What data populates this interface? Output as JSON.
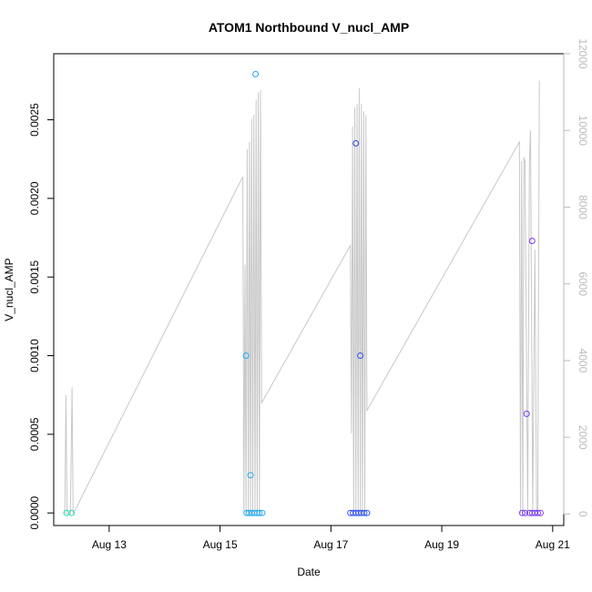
{
  "chart_data": {
    "type": "scatter",
    "title": "ATOM1 Northbound V_nucl_AMP",
    "xlabel": "Date",
    "ylabel": "V_nucl_AMP",
    "x_ticks": [
      {
        "day": 13,
        "label": "Aug 13"
      },
      {
        "day": 15,
        "label": "Aug 15"
      },
      {
        "day": 17,
        "label": "Aug 17"
      },
      {
        "day": 19,
        "label": "Aug 19"
      },
      {
        "day": 21,
        "label": "Aug 21"
      }
    ],
    "xlim_days": [
      12.0,
      21.2
    ],
    "ylim": [
      -8e-05,
      0.00292
    ],
    "y_ticks": [
      "0.0000",
      "0.0005",
      "0.0010",
      "0.0015",
      "0.0020",
      "0.0025"
    ],
    "y2lim": [
      -300,
      12000
    ],
    "y2_ticks": [
      "0",
      "2000",
      "4000",
      "6000",
      "8000",
      "10000",
      "12000"
    ],
    "points": [
      {
        "day": 12.23,
        "y": 0.0,
        "color": "#1ee0b4"
      },
      {
        "day": 12.32,
        "y": 0.0,
        "color": "#1ee0b4"
      },
      {
        "day": 15.47,
        "y": 0.001,
        "color": "#22aaee"
      },
      {
        "day": 15.55,
        "y": 0.00024,
        "color": "#22aaee"
      },
      {
        "day": 15.64,
        "y": 0.00279,
        "color": "#22aaee"
      },
      {
        "day": 15.48,
        "y": 0.0,
        "color": "#22aaee"
      },
      {
        "day": 15.52,
        "y": 0.0,
        "color": "#22aaee"
      },
      {
        "day": 15.57,
        "y": 0.0,
        "color": "#22aaee"
      },
      {
        "day": 15.62,
        "y": 0.0,
        "color": "#22aaee"
      },
      {
        "day": 15.67,
        "y": 0.0,
        "color": "#22aaee"
      },
      {
        "day": 15.71,
        "y": 0.0,
        "color": "#22aaee"
      },
      {
        "day": 15.76,
        "y": 0.0,
        "color": "#22aaee"
      },
      {
        "day": 17.45,
        "y": 0.00235,
        "color": "#2e50ee"
      },
      {
        "day": 17.53,
        "y": 0.001,
        "color": "#2e50ee"
      },
      {
        "day": 17.35,
        "y": 0.0,
        "color": "#2e50ee"
      },
      {
        "day": 17.4,
        "y": 0.0,
        "color": "#2e50ee"
      },
      {
        "day": 17.45,
        "y": 0.0,
        "color": "#2e50ee"
      },
      {
        "day": 17.5,
        "y": 0.0,
        "color": "#2e50ee"
      },
      {
        "day": 17.55,
        "y": 0.0,
        "color": "#2e50ee"
      },
      {
        "day": 17.6,
        "y": 0.0,
        "color": "#2e50ee"
      },
      {
        "day": 17.65,
        "y": 0.0,
        "color": "#2e50ee"
      },
      {
        "day": 20.53,
        "y": 0.00063,
        "color": "#7a3cf0"
      },
      {
        "day": 20.63,
        "y": 0.00173,
        "color": "#7a3cf0"
      },
      {
        "day": 20.45,
        "y": 0.0,
        "color": "#7a3cf0"
      },
      {
        "day": 20.5,
        "y": 0.0,
        "color": "#7a3cf0"
      },
      {
        "day": 20.58,
        "y": 0.0,
        "color": "#7a3cf0"
      },
      {
        "day": 20.63,
        "y": 0.0,
        "color": "#7a3cf0"
      },
      {
        "day": 20.68,
        "y": 0.0,
        "color": "#7a3cf0"
      },
      {
        "day": 20.73,
        "y": 0.0,
        "color": "#7a3cf0"
      },
      {
        "day": 20.78,
        "y": 0.0,
        "color": "#7a3cf0"
      }
    ],
    "line_series": {
      "color": "#c8c8c8",
      "points": [
        [
          12.2,
          0
        ],
        [
          12.22,
          3100
        ],
        [
          12.24,
          0
        ],
        [
          12.3,
          0
        ],
        [
          12.33,
          3300
        ],
        [
          12.35,
          0
        ],
        [
          15.41,
          8800
        ],
        [
          15.43,
          0
        ],
        [
          15.45,
          6500
        ],
        [
          15.47,
          0
        ],
        [
          15.49,
          9500
        ],
        [
          15.51,
          0
        ],
        [
          15.53,
          9700
        ],
        [
          15.55,
          0
        ],
        [
          15.57,
          10300
        ],
        [
          15.59,
          0
        ],
        [
          15.61,
          10400
        ],
        [
          15.63,
          0
        ],
        [
          15.65,
          10800
        ],
        [
          15.67,
          0
        ],
        [
          15.69,
          11000
        ],
        [
          15.71,
          0
        ],
        [
          15.73,
          11050
        ],
        [
          15.75,
          2900
        ],
        [
          17.35,
          7000
        ],
        [
          17.37,
          2100
        ],
        [
          17.39,
          10100
        ],
        [
          17.41,
          0
        ],
        [
          17.43,
          10600
        ],
        [
          17.45,
          0
        ],
        [
          17.47,
          10700
        ],
        [
          17.49,
          0
        ],
        [
          17.51,
          11100
        ],
        [
          17.53,
          0
        ],
        [
          17.55,
          10700
        ],
        [
          17.57,
          0
        ],
        [
          17.59,
          10500
        ],
        [
          17.61,
          0
        ],
        [
          17.63,
          10400
        ],
        [
          17.65,
          2700
        ],
        [
          20.4,
          9700
        ],
        [
          20.42,
          0
        ],
        [
          20.44,
          9200
        ],
        [
          20.46,
          0
        ],
        [
          20.48,
          9300
        ],
        [
          20.5,
          9200
        ],
        [
          20.55,
          0
        ],
        [
          20.58,
          9200
        ],
        [
          20.6,
          10000
        ],
        [
          20.64,
          0
        ],
        [
          20.68,
          6900
        ],
        [
          20.71,
          0
        ],
        [
          20.73,
          0
        ],
        [
          20.76,
          11300
        ]
      ]
    }
  }
}
